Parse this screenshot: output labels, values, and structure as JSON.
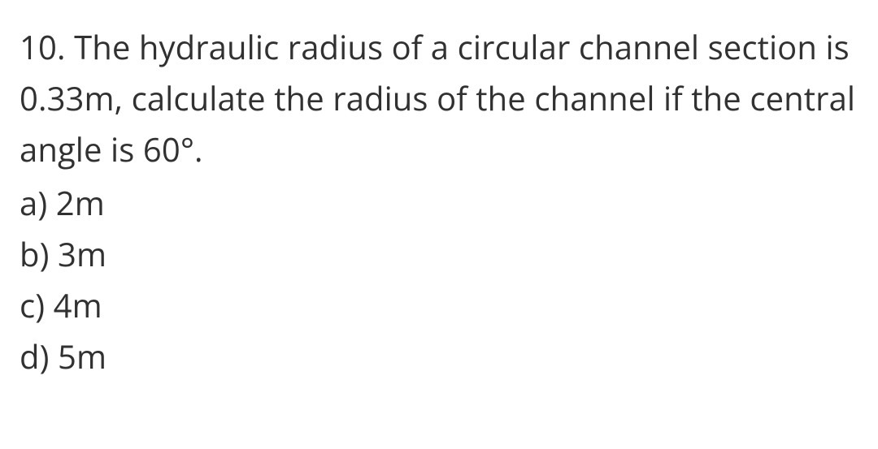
{
  "question": {
    "number": "10.",
    "text": "The hydraulic radius of a circular channel section is 0.33m, calculate the radius of the channel if the central angle is 60°."
  },
  "options": [
    {
      "label": "a)",
      "value": "2m"
    },
    {
      "label": "b)",
      "value": "3m"
    },
    {
      "label": "c)",
      "value": "4m"
    },
    {
      "label": "d)",
      "value": "5m"
    }
  ],
  "style": {
    "text_color": "#313131",
    "background_color": "#ffffff",
    "font_size_pt": 30,
    "line_height": 1.58
  }
}
